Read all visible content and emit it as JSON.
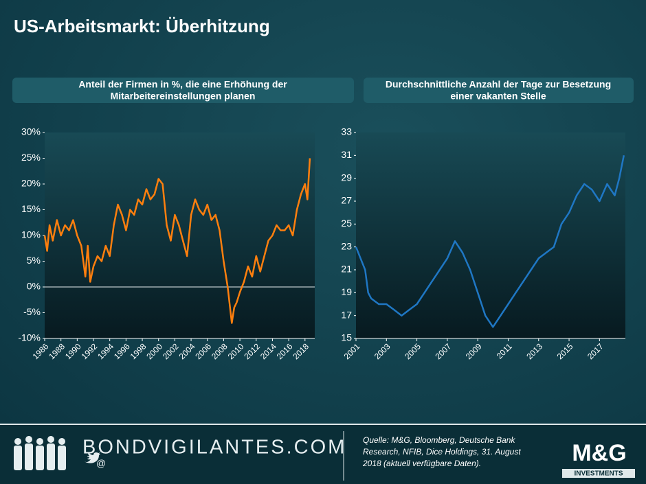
{
  "header": {
    "title": "US-Arbeitsmarkt:  Überhitzung"
  },
  "chart_data": [
    {
      "type": "line",
      "title": [
        "Anteil  der Firmen in %, die eine Erhöhung der",
        "Mitarbeitereinstellungen planen"
      ],
      "x": [
        1986,
        1986.3,
        1986.6,
        1987,
        1987.5,
        1988,
        1988.5,
        1989,
        1989.5,
        1990,
        1990.5,
        1991,
        1991.3,
        1991.6,
        1992,
        1992.5,
        1993,
        1993.5,
        1994,
        1994.5,
        1995,
        1995.5,
        1996,
        1996.5,
        1997,
        1997.5,
        1998,
        1998.5,
        1999,
        1999.5,
        2000,
        2000.5,
        2001,
        2001.5,
        2002,
        2002.5,
        2003,
        2003.5,
        2004,
        2004.5,
        2005,
        2005.5,
        2006,
        2006.5,
        2007,
        2007.5,
        2008,
        2008.5,
        2009,
        2009.3,
        2009.6,
        2010,
        2010.5,
        2011,
        2011.5,
        2012,
        2012.5,
        2013,
        2013.5,
        2014,
        2014.5,
        2015,
        2015.5,
        2016,
        2016.5,
        2017,
        2017.5,
        2018,
        2018.3,
        2018.6
      ],
      "values": [
        10,
        7,
        12,
        9,
        13,
        10,
        12,
        11,
        13,
        10,
        8,
        2,
        8,
        1,
        4,
        6,
        5,
        8,
        6,
        12,
        16,
        14,
        11,
        15,
        14,
        17,
        16,
        19,
        17,
        18,
        21,
        20,
        12,
        9,
        14,
        12,
        9,
        6,
        14,
        17,
        15,
        14,
        16,
        13,
        14,
        11,
        5,
        0,
        -7,
        -4,
        -3,
        -1,
        1,
        4,
        2,
        6,
        3,
        6,
        9,
        10,
        12,
        11,
        11,
        12,
        10,
        15,
        18,
        20,
        17,
        25
      ],
      "color": "#ff7f0e",
      "xlim": [
        1986,
        2019.2
      ],
      "xticks": [
        1986,
        1988,
        1990,
        1992,
        1994,
        1996,
        1998,
        2000,
        2002,
        2004,
        2006,
        2008,
        2010,
        2012,
        2014,
        2016,
        2018
      ],
      "ylim": [
        -10,
        30
      ],
      "yticks": [
        {
          "value": -10,
          "label": "-10%"
        },
        {
          "value": -5,
          "label": "-5%"
        },
        {
          "value": 0,
          "label": "0%"
        },
        {
          "value": 5,
          "label": "5%"
        },
        {
          "value": 10,
          "label": "10%"
        },
        {
          "value": 15,
          "label": "15%"
        },
        {
          "value": 20,
          "label": "20%"
        },
        {
          "value": 25,
          "label": "25%"
        },
        {
          "value": 30,
          "label": "30%"
        }
      ],
      "zero_line": true
    },
    {
      "type": "line",
      "title": [
        "Durchschnittliche Anzahl der Tage zur Besetzung",
        "einer vakanten Stelle"
      ],
      "x": [
        2001,
        2001.3,
        2001.6,
        2001.8,
        2002,
        2002.5,
        2003,
        2003.5,
        2004,
        2004.5,
        2005,
        2005.5,
        2006,
        2006.5,
        2007,
        2007.5,
        2008,
        2008.5,
        2009,
        2009.5,
        2010,
        2010.5,
        2011,
        2011.5,
        2012,
        2012.5,
        2013,
        2013.5,
        2014,
        2014.5,
        2015,
        2015.5,
        2016,
        2016.5,
        2017,
        2017.5,
        2018,
        2018.3,
        2018.6
      ],
      "values": [
        23,
        22,
        21,
        19,
        18.5,
        18,
        18,
        17.5,
        17,
        17.5,
        18,
        19,
        20,
        21,
        22,
        23.5,
        22.5,
        21,
        19,
        17,
        16,
        17,
        18,
        19,
        20,
        21,
        22,
        22.5,
        23,
        25,
        26,
        27.5,
        28.5,
        28,
        27,
        28.5,
        27.5,
        29,
        31
      ],
      "color": "#1f77c4",
      "xlim": [
        2001,
        2018.7
      ],
      "xticks": [
        2001,
        2003,
        2005,
        2007,
        2009,
        2011,
        2013,
        2015,
        2017
      ],
      "ylim": [
        15,
        33
      ],
      "yticks": [
        15,
        17,
        19,
        21,
        23,
        25,
        27,
        29,
        31,
        33
      ],
      "zero_line": false
    }
  ],
  "footer": {
    "brand": "BONDVIGILANTES.COM",
    "at": "@",
    "source": [
      "Quelle: M&G, Bloomberg, Deutsche Bank",
      "Research, NFIB, Dice Holdings, 31. August",
      "2018 (aktuell verfügbare Daten)."
    ],
    "logo": "M&G",
    "logo_sub": "INVESTMENTS"
  }
}
